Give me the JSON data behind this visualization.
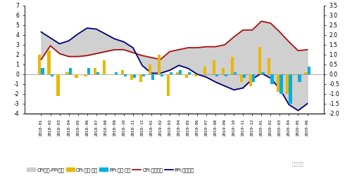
{
  "dates": [
    "2018-01",
    "2018-02",
    "2018-03",
    "2018-04",
    "2018-05",
    "2018-06",
    "2018-07",
    "2018-08",
    "2018-09",
    "2018-10",
    "2018-11",
    "2018-12",
    "2019-01",
    "2019-02",
    "2019-03",
    "2019-04",
    "2019-05",
    "2019-06",
    "2019-07",
    "2019-08",
    "2019-09",
    "2019-10",
    "2019-11",
    "2019-12",
    "2020-01",
    "2020-02",
    "2020-03",
    "2020-04",
    "2020-05",
    "2020-06"
  ],
  "CPI_yoy": [
    1.5,
    2.9,
    2.1,
    1.8,
    1.8,
    1.9,
    2.1,
    2.3,
    2.5,
    2.5,
    2.2,
    1.9,
    1.7,
    1.5,
    2.3,
    2.5,
    2.7,
    2.7,
    2.8,
    2.8,
    3.0,
    3.8,
    4.5,
    4.5,
    5.4,
    5.2,
    4.3,
    3.3,
    2.4,
    2.5
  ],
  "PPI_yoy": [
    4.3,
    3.7,
    3.1,
    3.4,
    4.1,
    4.7,
    4.6,
    4.1,
    3.6,
    3.3,
    2.7,
    0.9,
    0.1,
    0.1,
    0.4,
    0.9,
    0.6,
    0.0,
    -0.3,
    -0.8,
    -1.2,
    -1.6,
    -1.4,
    -0.5,
    0.1,
    -0.4,
    -1.5,
    -3.1,
    -3.7,
    -3.0
  ],
  "CPI_mom_right": [
    1.0,
    1.2,
    -1.1,
    0.1,
    -0.2,
    -0.1,
    0.3,
    0.7,
    0.0,
    0.2,
    -0.3,
    -0.4,
    0.5,
    1.0,
    -1.1,
    0.1,
    -0.2,
    -0.1,
    0.4,
    0.7,
    0.3,
    0.9,
    -0.4,
    -0.6,
    1.4,
    0.8,
    -0.9,
    -1.0,
    0.0,
    0.1
  ],
  "PPI_mom_right": [
    0.3,
    -0.1,
    0.0,
    0.3,
    0.0,
    0.3,
    0.1,
    0.0,
    0.1,
    -0.1,
    -0.2,
    -0.1,
    -0.3,
    -0.1,
    0.1,
    0.2,
    0.1,
    0.0,
    0.0,
    -0.1,
    -0.1,
    0.1,
    -0.2,
    -0.4,
    0.1,
    -0.5,
    -1.0,
    -1.5,
    -0.4,
    0.4
  ],
  "ylim_left": [
    -4.0,
    7.0
  ],
  "ylim_right": [
    -2.0,
    3.5
  ],
  "yticks_left": [
    -4,
    -3,
    -2,
    -1,
    0,
    1,
    2,
    3,
    4,
    5,
    6,
    7
  ],
  "yticks_right": [
    -2.0,
    -1.5,
    -1.0,
    -0.5,
    0.0,
    0.5,
    1.0,
    1.5,
    2.0,
    2.5,
    3.0,
    3.5
  ],
  "gray_color": "#c8c8c8",
  "CPI_mom_color": "#e8b800",
  "PPI_mom_color": "#00b0d8",
  "CPI_yoy_color": "#aa1111",
  "PPI_yoy_color": "#00007a",
  "legend_labels": [
    "CPI同比-PPI同比",
    "CPI:环比:右轴",
    "PPI:环比:右轴",
    "CPI:当月同比",
    "PPI:当月同比"
  ],
  "watermark": "温彬研究",
  "background_color": "#ffffff"
}
